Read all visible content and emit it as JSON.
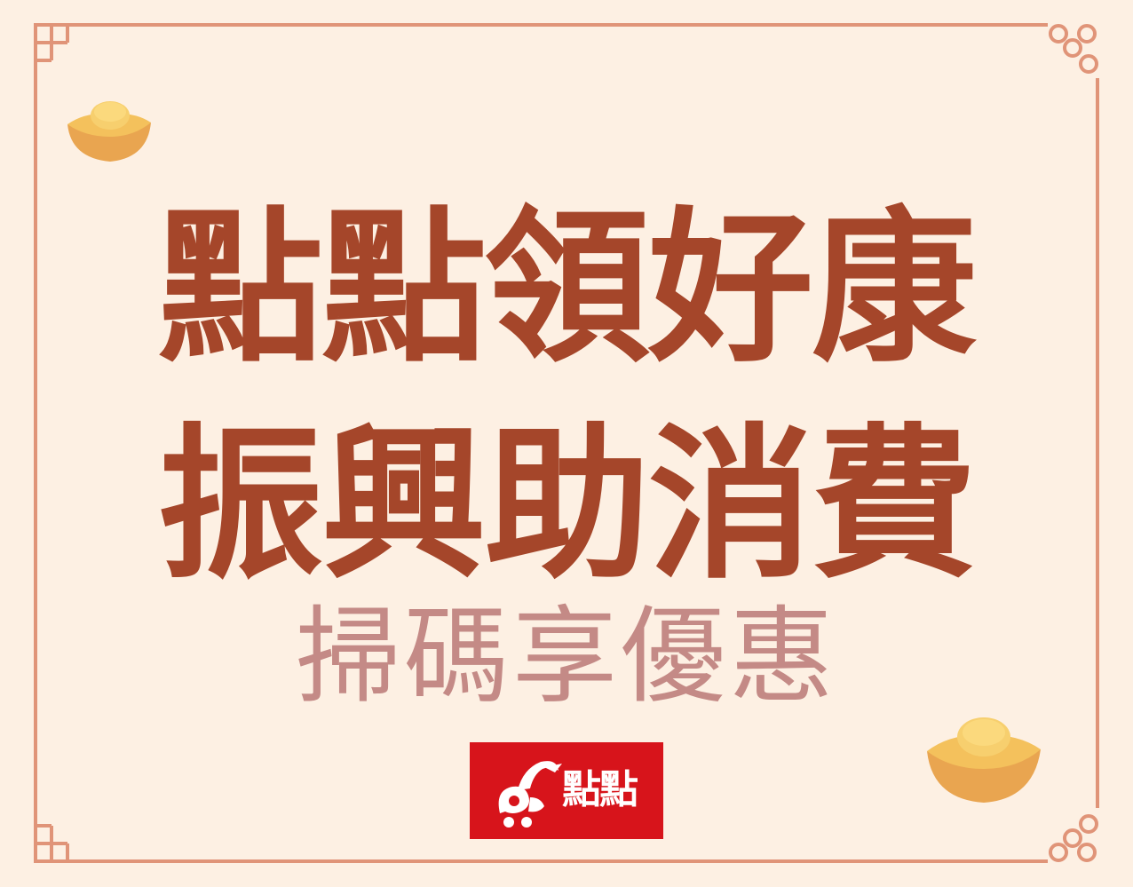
{
  "headline": {
    "line1": "點點領好康",
    "line2": "振興助消費",
    "color": "#a5462a"
  },
  "subline": {
    "text": "掃碼享優惠",
    "color": "#c48a86"
  },
  "logo": {
    "text": "點點",
    "background": "#d7141b"
  },
  "colors": {
    "background": "#fdf0e3",
    "frame": "#e09478",
    "ingot": "#f4c15c"
  }
}
